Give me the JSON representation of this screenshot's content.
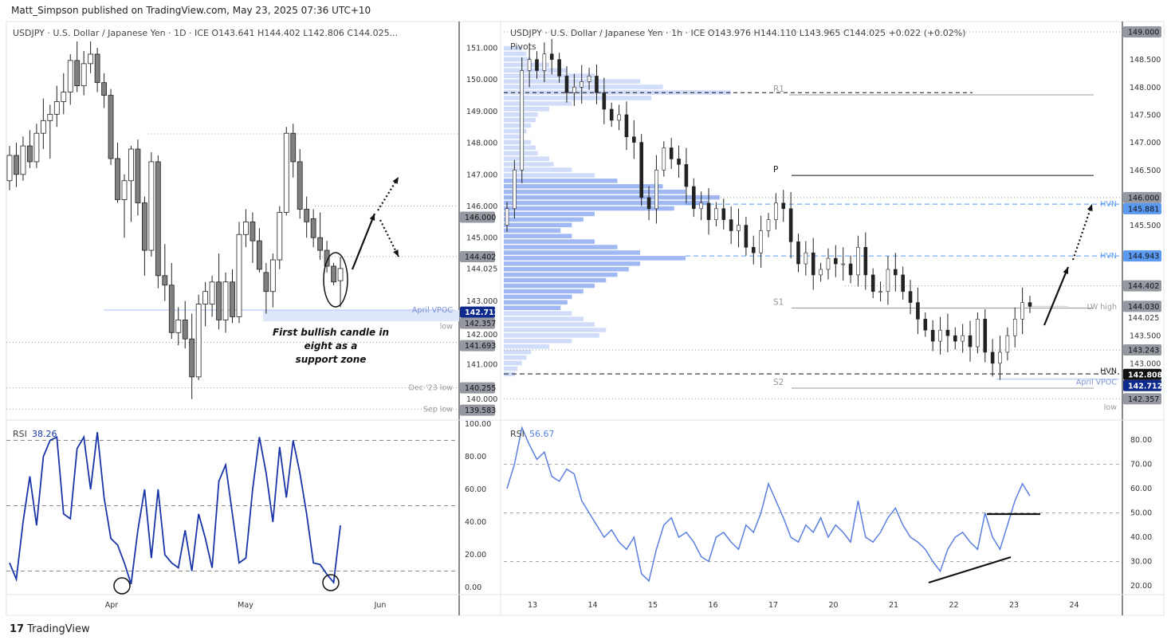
{
  "published": "Matt_Simpson published on TradingView.com, May 23, 2025 07:36 UTC+10",
  "brand": "TradingView",
  "colors": {
    "bull": "#ffffff",
    "bear": "#808080",
    "rsi_daily": "#1a35a8",
    "rsi_hourly": "#5b7fe0",
    "vpoc": "#0d2a8c",
    "hvn": "#5b9af0",
    "profile": "#a9bff5"
  },
  "chart_data": [
    {
      "type": "candlestick",
      "legend": "USDJPY · U.S. Dollar / Japanese Yen · 1D · ICE  O143.641  H144.402  L142.806  C144.025...",
      "ylim": [
        139.5,
        151.5
      ],
      "y_ticks": [
        "151.000",
        "150.000",
        "149.000",
        "148.000",
        "147.000",
        "146.000",
        "145.000",
        "144.025",
        "143.000",
        "142.000",
        "141.000",
        "140.000"
      ],
      "x_ticks": [
        "Apr",
        "May",
        "Jun"
      ],
      "price_labels": [
        {
          "value": "146.000",
          "style": "gray"
        },
        {
          "value": "144.402",
          "style": "gray"
        },
        {
          "value": "142.712",
          "style": "blue"
        },
        {
          "value": "142.357",
          "style": "gray"
        },
        {
          "value": "141.693",
          "style": "gray"
        },
        {
          "value": "140.255",
          "style": "gray"
        },
        {
          "value": "139.583",
          "style": "gray"
        }
      ],
      "level_labels": [
        "April VPOC",
        "low",
        "Dec '23 low",
        "Sep low"
      ],
      "annotation": "First bullish candle in eight as a support zone",
      "ohlc": [
        [
          146.8,
          147.9,
          146.5,
          147.6
        ],
        [
          147.6,
          148.0,
          146.6,
          147.0
        ],
        [
          147.0,
          148.2,
          146.8,
          147.9
        ],
        [
          147.9,
          148.4,
          147.2,
          147.4
        ],
        [
          147.4,
          148.6,
          147.2,
          148.3
        ],
        [
          148.3,
          149.4,
          147.8,
          148.7
        ],
        [
          148.7,
          149.2,
          147.5,
          148.9
        ],
        [
          148.9,
          149.8,
          148.5,
          149.3
        ],
        [
          149.3,
          150.2,
          148.9,
          149.6
        ],
        [
          149.6,
          150.8,
          149.2,
          150.6
        ],
        [
          150.6,
          151.2,
          149.6,
          149.8
        ],
        [
          149.8,
          150.9,
          149.5,
          150.5
        ],
        [
          150.5,
          151.2,
          150.2,
          150.8
        ],
        [
          150.8,
          151.0,
          149.6,
          149.9
        ],
        [
          149.9,
          150.2,
          149.1,
          149.5
        ],
        [
          149.5,
          149.7,
          147.3,
          147.5
        ],
        [
          147.5,
          148.0,
          146.1,
          146.2
        ],
        [
          146.2,
          147.0,
          145.0,
          146.8
        ],
        [
          146.8,
          147.9,
          145.5,
          147.8
        ],
        [
          147.8,
          148.1,
          145.7,
          146.1
        ],
        [
          146.1,
          146.3,
          143.8,
          144.6
        ],
        [
          144.6,
          147.7,
          144.4,
          147.4
        ],
        [
          147.4,
          147.6,
          143.4,
          143.8
        ],
        [
          143.8,
          144.8,
          143.0,
          143.5
        ],
        [
          143.5,
          144.2,
          141.8,
          142.0
        ],
        [
          142.0,
          142.8,
          141.6,
          142.4
        ],
        [
          142.4,
          143.0,
          141.5,
          141.8
        ],
        [
          141.8,
          142.6,
          139.9,
          140.6
        ],
        [
          140.6,
          143.2,
          140.5,
          142.9
        ],
        [
          142.9,
          143.6,
          142.2,
          143.3
        ],
        [
          142.9,
          143.8,
          142.5,
          143.6
        ],
        [
          143.6,
          144.5,
          142.1,
          142.4
        ],
        [
          142.4,
          143.9,
          142.0,
          143.6
        ],
        [
          143.6,
          144.0,
          142.3,
          142.5
        ],
        [
          142.5,
          145.5,
          142.3,
          145.1
        ],
        [
          145.1,
          145.9,
          144.7,
          145.5
        ],
        [
          145.5,
          145.8,
          144.2,
          144.9
        ],
        [
          144.9,
          145.3,
          143.9,
          144.0
        ],
        [
          143.9,
          144.2,
          142.6,
          143.3
        ],
        [
          143.3,
          144.5,
          142.8,
          144.3
        ],
        [
          144.3,
          146.0,
          144.0,
          145.8
        ],
        [
          145.8,
          148.5,
          145.7,
          148.3
        ],
        [
          148.3,
          148.6,
          146.9,
          147.4
        ],
        [
          147.4,
          147.8,
          145.6,
          145.9
        ],
        [
          145.9,
          146.3,
          145.0,
          145.5
        ],
        [
          145.6,
          145.9,
          144.7,
          145.0
        ],
        [
          145.0,
          145.8,
          144.3,
          144.6
        ],
        [
          144.6,
          144.9,
          143.9,
          144.1
        ],
        [
          144.1,
          144.2,
          143.5,
          143.6
        ],
        [
          143.641,
          144.402,
          142.806,
          144.025
        ]
      ]
    },
    {
      "type": "line",
      "legend_label": "RSI",
      "legend_value": "38.26",
      "ylim": [
        0,
        100
      ],
      "y_ticks": [
        "100.00",
        "80.00",
        "60.00",
        "40.00",
        "20.00",
        "0.00"
      ],
      "values": [
        15,
        5,
        40,
        68,
        38,
        80,
        90,
        92,
        45,
        42,
        85,
        92,
        60,
        95,
        55,
        30,
        26,
        15,
        2,
        35,
        60,
        18,
        60,
        20,
        15,
        12,
        35,
        10,
        45,
        30,
        12,
        65,
        75,
        45,
        15,
        18,
        60,
        92,
        70,
        40,
        86,
        55,
        90,
        70,
        45,
        15,
        14,
        8,
        3,
        38
      ]
    },
    {
      "type": "candlestick",
      "legend": "USDJPY · U.S. Dollar / Japanese Yen · 1h · ICE  O143.976  H144.110  L143.965  C144.025  +0.022 (+0.02%)",
      "indicator": "Pivots",
      "ylim": [
        142.2,
        149.1
      ],
      "y_ticks": [
        "148.500",
        "148.000",
        "147.500",
        "147.000",
        "146.500",
        "145.500",
        "143.500",
        "143.000"
      ],
      "x_ticks": [
        "13",
        "14",
        "15",
        "16",
        "17",
        "20",
        "21",
        "22",
        "23",
        "24"
      ],
      "price_labels": [
        {
          "value": "149.000",
          "style": "gray"
        },
        {
          "value": "146.000",
          "style": "gray"
        },
        {
          "value": "145.881",
          "style": "lightblue"
        },
        {
          "value": "144.943",
          "style": "lightblue"
        },
        {
          "value": "144.402",
          "style": "gray"
        },
        {
          "value": "144.030",
          "style": "gray"
        },
        {
          "value": "144.025",
          "style": "plain"
        },
        {
          "value": "143.243",
          "style": "gray"
        },
        {
          "value": "142.808",
          "style": "black"
        },
        {
          "value": "142.712",
          "style": "blue"
        },
        {
          "value": "142.357",
          "style": "gray"
        }
      ],
      "pivot_labels": [
        "R1",
        "P",
        "S1",
        "S2"
      ],
      "level_labels": [
        "HVN",
        "HVN",
        "LW high",
        "HVN",
        "April VPOC",
        "low"
      ],
      "closes": [
        145.8,
        146.5,
        148.3,
        148.5,
        148.3,
        148.6,
        148.5,
        148.2,
        147.9,
        148.0,
        148.1,
        148.2,
        147.9,
        147.6,
        147.4,
        147.5,
        147.1,
        147.0,
        146.0,
        145.8,
        146.5,
        146.9,
        146.7,
        146.6,
        146.2,
        145.8,
        145.9,
        145.6,
        145.8,
        145.6,
        145.4,
        145.5,
        145.1,
        145.0,
        145.4,
        145.6,
        145.9,
        145.8,
        145.2,
        144.8,
        145.0,
        144.6,
        144.7,
        144.9,
        144.8,
        144.8,
        144.6,
        145.1,
        144.6,
        144.3,
        144.3,
        144.7,
        144.6,
        144.3,
        144.1,
        143.8,
        143.6,
        143.4,
        143.6,
        143.5,
        143.4,
        143.5,
        143.3,
        143.8,
        143.2,
        143.0,
        143.2,
        143.5,
        143.8,
        144.1,
        144.03
      ],
      "volume_profile": {
        "top_price": 148.7,
        "step": 0.1,
        "relative_volume": [
          0.08,
          0.1,
          0.12,
          0.2,
          0.28,
          0.4,
          0.6,
          0.7,
          1.0,
          0.65,
          0.3,
          0.2,
          0.15,
          0.14,
          0.12,
          0.1,
          0.08,
          0.12,
          0.14,
          0.15,
          0.2,
          0.22,
          0.3,
          0.4,
          0.5,
          0.7,
          0.8,
          0.95,
          0.9,
          0.75,
          0.4,
          0.35,
          0.3,
          0.25,
          0.3,
          0.4,
          0.5,
          0.6,
          0.8,
          0.6,
          0.55,
          0.5,
          0.45,
          0.4,
          0.35,
          0.3,
          0.28,
          0.25,
          0.3,
          0.35,
          0.4,
          0.45,
          0.42,
          0.3,
          0.2,
          0.12,
          0.1,
          0.08,
          0.06,
          0.05
        ]
      }
    },
    {
      "type": "line",
      "legend_label": "RSI",
      "legend_value": "56.67",
      "ylim": [
        15,
        90
      ],
      "y_ticks": [
        "80.00",
        "70.00",
        "60.00",
        "50.00",
        "40.00",
        "30.00",
        "20.00"
      ],
      "values": [
        60,
        70,
        85,
        78,
        72,
        75,
        65,
        63,
        68,
        66,
        55,
        50,
        45,
        40,
        43,
        38,
        35,
        40,
        25,
        22,
        35,
        45,
        48,
        40,
        42,
        38,
        32,
        30,
        40,
        42,
        38,
        35,
        45,
        42,
        50,
        62,
        55,
        48,
        40,
        38,
        45,
        42,
        48,
        40,
        45,
        42,
        38,
        55,
        40,
        38,
        42,
        48,
        52,
        45,
        40,
        38,
        35,
        30,
        26,
        35,
        40,
        42,
        38,
        35,
        50,
        40,
        35,
        45,
        55,
        62,
        57
      ]
    }
  ]
}
